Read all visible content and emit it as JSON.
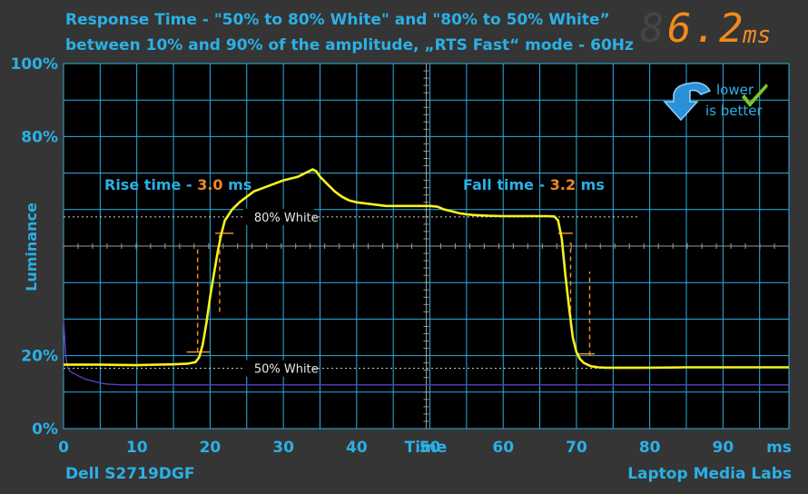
{
  "header": {
    "title_line1": "Response Time - \"50% to 80% White\" and \"80% to 50% White”",
    "title_line2": "between 10% and 90% of the amplitude, „RTS Fast“ mode - 60Hz",
    "total_value": "6.2",
    "total_unit": "ms"
  },
  "badge": {
    "line1": "lower",
    "line2": "is better",
    "icons": [
      "down-arrow-icon",
      "checkmark-icon"
    ]
  },
  "footer": {
    "left": "Dell S2719DGF",
    "right": "Laptop Media Labs"
  },
  "colors": {
    "background": "#353535",
    "accent": "#2bb0e6",
    "highlight": "#f28a1d",
    "signal": "#f6f21e",
    "reference": "#5a3fbf",
    "grid": "#2bb0e6",
    "plot_background": "#000000"
  },
  "chart_data": {
    "type": "line",
    "xlabel": "Time",
    "xunit": "ms",
    "ylabel": "Luminance",
    "xlim": [
      0,
      99
    ],
    "ylim": [
      0,
      100
    ],
    "x_ticks": [
      0,
      10,
      20,
      30,
      40,
      50,
      60,
      70,
      80,
      90
    ],
    "y_tick_labels": [
      {
        "value": 100,
        "label": "100%"
      },
      {
        "value": 80,
        "label": "80%"
      },
      {
        "value": 20,
        "label": "20%"
      },
      {
        "value": 0,
        "label": "0%"
      }
    ],
    "grid": true,
    "reference_lines": [
      {
        "label": "80% White",
        "y": 58
      },
      {
        "label": "50% White",
        "y": 16.5
      }
    ],
    "annotations": [
      {
        "prefix": "Rise time - ",
        "value": "3.0",
        "suffix": " ms"
      },
      {
        "prefix": "Fall time - ",
        "value": "3.2",
        "suffix": " ms"
      }
    ],
    "series": [
      {
        "x": [
          0,
          5,
          10,
          15,
          17,
          18,
          18.5,
          19,
          19.5,
          20,
          20.5,
          21,
          21.5,
          22,
          23,
          24,
          25,
          26,
          28,
          30,
          32,
          33,
          34,
          34.5,
          35,
          36,
          37,
          38,
          39,
          40,
          42,
          44,
          46,
          48,
          50,
          51,
          52,
          53,
          54,
          55,
          56,
          58,
          60,
          62,
          64,
          66,
          67,
          67.5,
          68,
          68.5,
          69,
          69.5,
          70,
          70.5,
          71,
          71.5,
          72,
          73,
          74,
          76,
          80,
          85,
          90,
          95,
          99
        ],
        "y": [
          17.5,
          17.5,
          17.4,
          17.6,
          17.8,
          18.2,
          19.5,
          23,
          29,
          36,
          42,
          48,
          53,
          57,
          60,
          62,
          63.5,
          65,
          66.5,
          68,
          69,
          70,
          71,
          70.5,
          69,
          67,
          65,
          63.5,
          62.5,
          62,
          61.5,
          61,
          61,
          61,
          61,
          60.8,
          60,
          59.5,
          59,
          58.7,
          58.5,
          58.3,
          58.2,
          58.2,
          58.2,
          58.2,
          58.1,
          57,
          52,
          42,
          33,
          25,
          21,
          19,
          18,
          17.5,
          17.1,
          16.8,
          16.7,
          16.7,
          16.7,
          16.8,
          16.8,
          16.8,
          16.8
        ]
      },
      {
        "x": [
          0,
          0.3,
          0.6,
          1,
          2,
          3,
          4,
          5,
          6,
          8,
          10,
          20,
          40,
          60,
          80,
          99
        ],
        "y": [
          30,
          20,
          16.5,
          15.5,
          14.5,
          13.5,
          13,
          12.5,
          12.2,
          12,
          12,
          12,
          12,
          12,
          12,
          12
        ]
      }
    ]
  }
}
